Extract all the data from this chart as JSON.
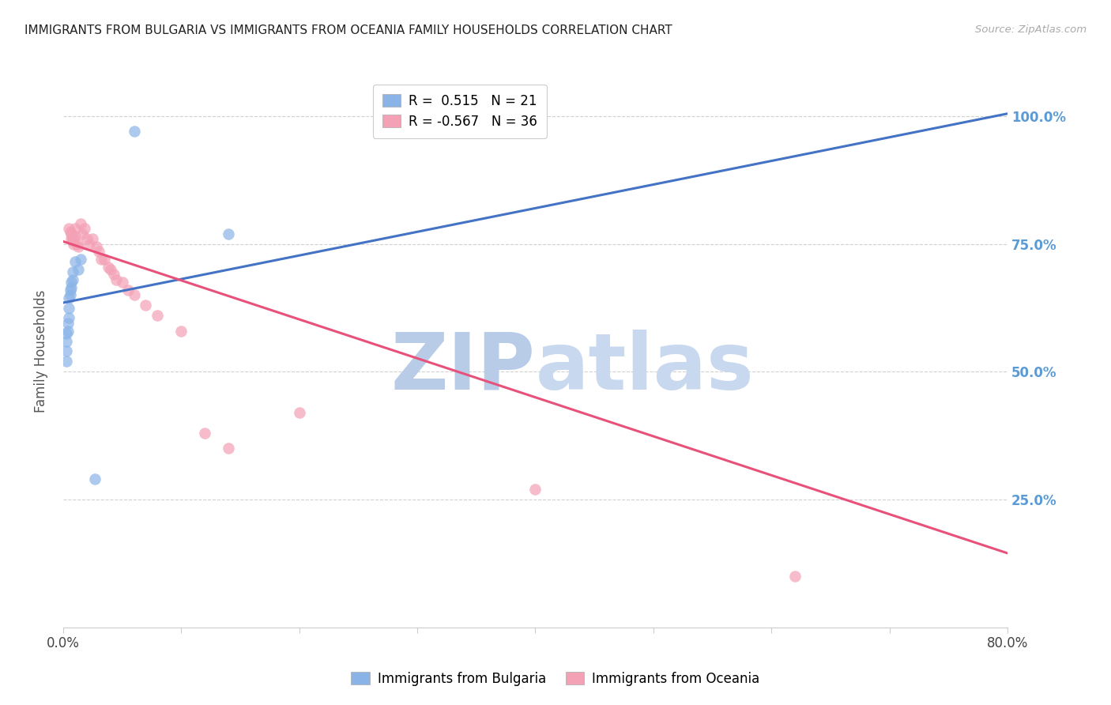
{
  "title": "IMMIGRANTS FROM BULGARIA VS IMMIGRANTS FROM OCEANIA FAMILY HOUSEHOLDS CORRELATION CHART",
  "source": "Source: ZipAtlas.com",
  "ylabel": "Family Households",
  "ytick_labels": [
    "100.0%",
    "75.0%",
    "50.0%",
    "25.0%"
  ],
  "ytick_values": [
    1.0,
    0.75,
    0.5,
    0.25
  ],
  "xlim": [
    0.0,
    0.8
  ],
  "ylim": [
    0.0,
    1.08
  ],
  "legend_r_bulgaria": "R =  0.515",
  "legend_n_bulgaria": "N = 21",
  "legend_r_oceania": "R = -0.567",
  "legend_n_oceania": "N = 36",
  "bulgaria_color": "#8ab4e8",
  "oceania_color": "#f4a0b5",
  "bulgaria_line_color": "#4472c4",
  "oceania_line_color": "#e8527a",
  "watermark_zip": "ZIP",
  "watermark_atlas": "atlas",
  "watermark_color": "#ccd9f0",
  "bg_color": "#ffffff",
  "grid_color": "#cccccc",
  "right_axis_color": "#5b9bd5",
  "bulgaria_x": [
    0.06,
    0.015,
    0.013,
    0.01,
    0.008,
    0.008,
    0.007,
    0.007,
    0.006,
    0.006,
    0.005,
    0.005,
    0.005,
    0.004,
    0.004,
    0.003,
    0.003,
    0.003,
    0.003,
    0.027,
    0.14
  ],
  "bulgaria_y": [
    0.97,
    0.72,
    0.7,
    0.715,
    0.695,
    0.68,
    0.675,
    0.665,
    0.66,
    0.65,
    0.645,
    0.625,
    0.605,
    0.595,
    0.58,
    0.575,
    0.56,
    0.54,
    0.52,
    0.29,
    0.77
  ],
  "oceania_x": [
    0.005,
    0.006,
    0.007,
    0.007,
    0.008,
    0.008,
    0.009,
    0.01,
    0.01,
    0.012,
    0.013,
    0.015,
    0.016,
    0.018,
    0.02,
    0.022,
    0.025,
    0.028,
    0.03,
    0.032,
    0.035,
    0.038,
    0.04,
    0.043,
    0.045,
    0.05,
    0.055,
    0.06,
    0.07,
    0.08,
    0.1,
    0.12,
    0.14,
    0.2,
    0.4,
    0.62
  ],
  "oceania_y": [
    0.78,
    0.775,
    0.76,
    0.77,
    0.755,
    0.76,
    0.75,
    0.78,
    0.765,
    0.75,
    0.745,
    0.79,
    0.77,
    0.78,
    0.76,
    0.75,
    0.76,
    0.745,
    0.735,
    0.72,
    0.72,
    0.705,
    0.7,
    0.69,
    0.68,
    0.675,
    0.66,
    0.65,
    0.63,
    0.61,
    0.58,
    0.38,
    0.35,
    0.42,
    0.27,
    0.1
  ],
  "blue_line_x": [
    0.0,
    0.8
  ],
  "blue_line_y": [
    0.635,
    1.005
  ],
  "pink_line_x": [
    0.0,
    0.8
  ],
  "pink_line_y": [
    0.755,
    0.145
  ]
}
